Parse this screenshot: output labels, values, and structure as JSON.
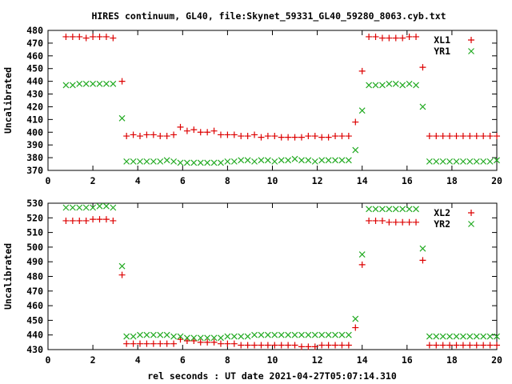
{
  "figure": {
    "title": "HIRES continuum, GL40, file:Skynet_59331_GL40_59280_8063.cyb.txt",
    "xlabel": "rel seconds : UT date 2021-04-27T05:07:14.310"
  },
  "colors": {
    "series1": "#dd0000",
    "series2": "#22aa22",
    "axes": "#000000",
    "background": "#ffffff"
  },
  "chart_data": [
    {
      "type": "scatter",
      "ylabel": "Uncalibrated",
      "xlim": [
        0,
        20
      ],
      "ylim": [
        370,
        480
      ],
      "xticks": [
        0,
        2,
        4,
        6,
        8,
        10,
        12,
        14,
        16,
        18,
        20
      ],
      "yticks": [
        370,
        380,
        390,
        400,
        410,
        420,
        430,
        440,
        450,
        460,
        470,
        480
      ],
      "legend_position": "top-right",
      "grid": false,
      "series": [
        {
          "name": "XL1",
          "marker": "plus",
          "x": [
            0.8,
            1.1,
            1.4,
            1.7,
            2.0,
            2.3,
            2.6,
            2.9,
            3.3,
            3.5,
            3.8,
            4.1,
            4.4,
            4.7,
            5.0,
            5.3,
            5.6,
            5.9,
            6.2,
            6.5,
            6.8,
            7.1,
            7.4,
            7.7,
            8.0,
            8.3,
            8.6,
            8.9,
            9.2,
            9.5,
            9.8,
            10.1,
            10.4,
            10.7,
            11.0,
            11.3,
            11.6,
            11.9,
            12.2,
            12.5,
            12.8,
            13.1,
            13.4,
            13.7,
            14.0,
            14.3,
            14.6,
            14.9,
            15.2,
            15.5,
            15.8,
            16.1,
            16.4,
            16.7,
            17.0,
            17.3,
            17.6,
            17.9,
            18.2,
            18.5,
            18.8,
            19.1,
            19.4,
            19.7,
            20.0
          ],
          "y": [
            475,
            475,
            475,
            474,
            475,
            475,
            475,
            474,
            440,
            397,
            398,
            397,
            398,
            398,
            397,
            397,
            398,
            404,
            401,
            402,
            400,
            400,
            401,
            398,
            398,
            398,
            397,
            397,
            398,
            396,
            397,
            397,
            396,
            396,
            396,
            396,
            397,
            397,
            396,
            396,
            397,
            397,
            397,
            408,
            448,
            475,
            475,
            474,
            474,
            474,
            474,
            475,
            475,
            451,
            397,
            397,
            397,
            397,
            397,
            397,
            397,
            397,
            397,
            397,
            397
          ]
        },
        {
          "name": "YR1",
          "marker": "cross",
          "x": [
            0.8,
            1.1,
            1.4,
            1.7,
            2.0,
            2.3,
            2.6,
            2.9,
            3.3,
            3.5,
            3.8,
            4.1,
            4.4,
            4.7,
            5.0,
            5.3,
            5.6,
            5.9,
            6.2,
            6.5,
            6.8,
            7.1,
            7.4,
            7.7,
            8.0,
            8.3,
            8.6,
            8.9,
            9.2,
            9.5,
            9.8,
            10.1,
            10.4,
            10.7,
            11.0,
            11.3,
            11.6,
            11.9,
            12.2,
            12.5,
            12.8,
            13.1,
            13.4,
            13.7,
            14.0,
            14.3,
            14.6,
            14.9,
            15.2,
            15.5,
            15.8,
            16.1,
            16.4,
            16.7,
            17.0,
            17.3,
            17.6,
            17.9,
            18.2,
            18.5,
            18.8,
            19.1,
            19.4,
            19.7,
            20.0
          ],
          "y": [
            437,
            437,
            438,
            438,
            438,
            438,
            438,
            438,
            411,
            377,
            377,
            377,
            377,
            377,
            377,
            378,
            377,
            376,
            376,
            376,
            376,
            376,
            376,
            376,
            377,
            377,
            378,
            378,
            377,
            378,
            378,
            377,
            378,
            378,
            379,
            378,
            378,
            377,
            378,
            378,
            378,
            378,
            378,
            386,
            417,
            437,
            437,
            437,
            438,
            438,
            437,
            438,
            437,
            420,
            377,
            377,
            377,
            377,
            377,
            377,
            377,
            377,
            377,
            377,
            378
          ]
        }
      ]
    },
    {
      "type": "scatter",
      "ylabel": "Uncalibrated",
      "xlim": [
        0,
        20
      ],
      "ylim": [
        430,
        530
      ],
      "xticks": [
        0,
        2,
        4,
        6,
        8,
        10,
        12,
        14,
        16,
        18,
        20
      ],
      "yticks": [
        430,
        440,
        450,
        460,
        470,
        480,
        490,
        500,
        510,
        520,
        530
      ],
      "legend_position": "top-right",
      "grid": false,
      "series": [
        {
          "name": "XL2",
          "marker": "plus",
          "x": [
            0.8,
            1.1,
            1.4,
            1.7,
            2.0,
            2.3,
            2.6,
            2.9,
            3.3,
            3.5,
            3.8,
            4.1,
            4.4,
            4.7,
            5.0,
            5.3,
            5.6,
            5.9,
            6.2,
            6.5,
            6.8,
            7.1,
            7.4,
            7.7,
            8.0,
            8.3,
            8.6,
            8.9,
            9.2,
            9.5,
            9.8,
            10.1,
            10.4,
            10.7,
            11.0,
            11.3,
            11.6,
            11.9,
            12.2,
            12.5,
            12.8,
            13.1,
            13.4,
            13.7,
            14.0,
            14.3,
            14.6,
            14.9,
            15.2,
            15.5,
            15.8,
            16.1,
            16.4,
            16.7,
            17.0,
            17.3,
            17.6,
            17.9,
            18.2,
            18.5,
            18.8,
            19.1,
            19.4,
            19.7,
            20.0
          ],
          "y": [
            518,
            518,
            518,
            518,
            519,
            519,
            519,
            518,
            481,
            434,
            434,
            434,
            434,
            434,
            434,
            434,
            434,
            437,
            436,
            436,
            435,
            435,
            435,
            434,
            434,
            434,
            433,
            433,
            433,
            433,
            433,
            433,
            433,
            433,
            433,
            432,
            432,
            432,
            433,
            433,
            433,
            433,
            433,
            445,
            488,
            518,
            518,
            518,
            517,
            517,
            517,
            517,
            517,
            491,
            433,
            433,
            433,
            433,
            433,
            433,
            433,
            433,
            433,
            433,
            433
          ]
        },
        {
          "name": "YR2",
          "marker": "cross",
          "x": [
            0.8,
            1.1,
            1.4,
            1.7,
            2.0,
            2.3,
            2.6,
            2.9,
            3.3,
            3.5,
            3.8,
            4.1,
            4.4,
            4.7,
            5.0,
            5.3,
            5.6,
            5.9,
            6.2,
            6.5,
            6.8,
            7.1,
            7.4,
            7.7,
            8.0,
            8.3,
            8.6,
            8.9,
            9.2,
            9.5,
            9.8,
            10.1,
            10.4,
            10.7,
            11.0,
            11.3,
            11.6,
            11.9,
            12.2,
            12.5,
            12.8,
            13.1,
            13.4,
            13.7,
            14.0,
            14.3,
            14.6,
            14.9,
            15.2,
            15.5,
            15.8,
            16.1,
            16.4,
            16.7,
            17.0,
            17.3,
            17.6,
            17.9,
            18.2,
            18.5,
            18.8,
            19.1,
            19.4,
            19.7,
            20.0
          ],
          "y": [
            527,
            527,
            527,
            527,
            527,
            528,
            528,
            527,
            487,
            439,
            439,
            440,
            440,
            440,
            440,
            440,
            439,
            439,
            438,
            438,
            438,
            438,
            438,
            438,
            439,
            439,
            439,
            439,
            440,
            440,
            440,
            440,
            440,
            440,
            440,
            440,
            440,
            440,
            440,
            440,
            440,
            440,
            440,
            451,
            495,
            526,
            526,
            526,
            526,
            526,
            526,
            526,
            526,
            499,
            439,
            439,
            439,
            439,
            439,
            439,
            439,
            439,
            439,
            439,
            439
          ]
        }
      ]
    }
  ]
}
